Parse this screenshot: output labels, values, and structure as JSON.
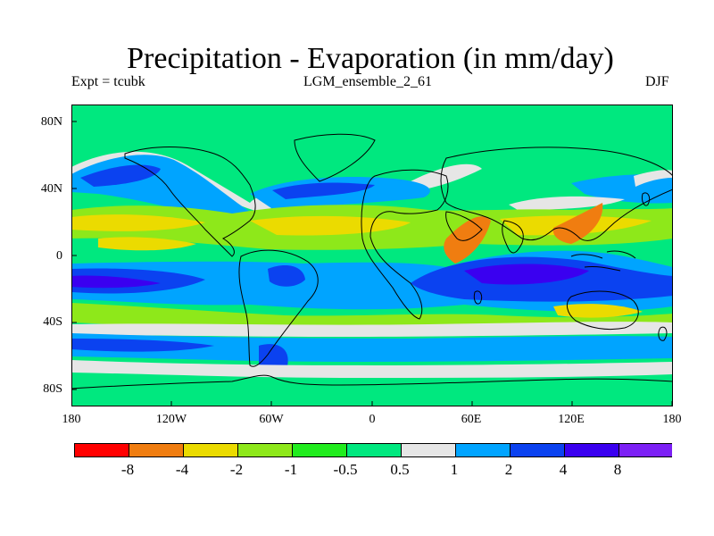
{
  "header": {
    "title": "Precipitation - Evaporation (in mm/day)",
    "experiment": "Expt = tcubk",
    "ensemble": "LGM_ensemble_2_61",
    "season": "DJF"
  },
  "map": {
    "projection": "Cylindrical Equidistant",
    "lat_labels": [
      "80N",
      "40N",
      "0",
      "40S",
      "80S"
    ],
    "lon_labels": [
      "180",
      "120W",
      "60W",
      "0",
      "60E",
      "120E",
      "180"
    ],
    "colors": {
      "bg": "#00e87f",
      "land_line": "#000000",
      "frame": "#000000"
    }
  },
  "colorbar": {
    "labels": [
      "-8",
      "-4",
      "-2",
      "-1",
      "-0.5",
      "0.5",
      "1",
      "2",
      "4",
      "8"
    ],
    "bins": [
      {
        "color": "#ff0000"
      },
      {
        "color": "#f07d10"
      },
      {
        "color": "#ebdb00"
      },
      {
        "color": "#8ee81a"
      },
      {
        "color": "#21ec1e"
      },
      {
        "color": "#00e87f"
      },
      {
        "color": "#e6e6e6"
      },
      {
        "color": "#00a4ff"
      },
      {
        "color": "#0b42f0"
      },
      {
        "color": "#3a00f0"
      },
      {
        "color": "#7c20f5"
      }
    ]
  },
  "chart_data": {
    "type": "heatmap",
    "title": "Precipitation - Evaporation (in mm/day)",
    "units": "mm/day",
    "levels": [
      -8,
      -4,
      -2,
      -1,
      -0.5,
      0.5,
      1,
      2,
      4,
      8
    ],
    "x_ticks": [
      "180",
      "120W",
      "60W",
      "0",
      "60E",
      "120E",
      "180"
    ],
    "y_ticks": [
      "80N",
      "40N",
      "0",
      "40S",
      "80S"
    ],
    "xlim": [
      -180,
      180
    ],
    "ylim": [
      -90,
      90
    ]
  }
}
